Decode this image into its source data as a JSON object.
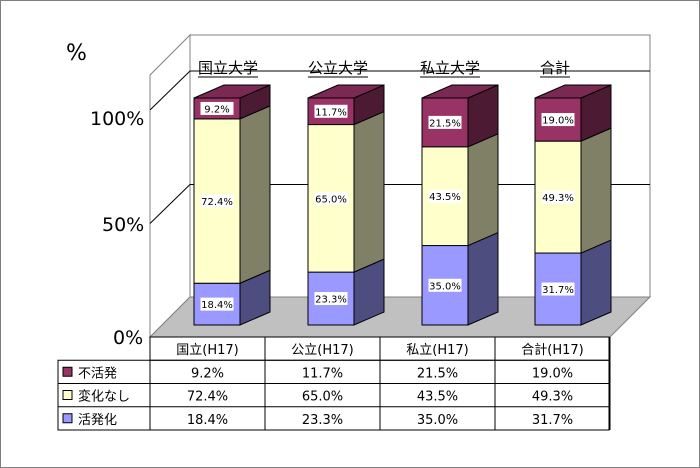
{
  "chart_data": {
    "type": "bar",
    "stacked": true,
    "three_d": true,
    "y_unit": "%",
    "y_ticks": [
      "0%",
      "50%",
      "100%"
    ],
    "ylim": [
      0,
      100
    ],
    "categories": [
      "国立大学",
      "公立大学",
      "私立大学",
      "合計"
    ],
    "table_headers": [
      "国立(H17)",
      "公立(H17)",
      "私立(H17)",
      "合計(H17)"
    ],
    "series": [
      {
        "name": "活発化",
        "color": "#9999ff",
        "values": [
          18.4,
          23.3,
          35.0,
          31.7
        ],
        "labels": [
          "18.4%",
          "23.3%",
          "35.0%",
          "31.7%"
        ]
      },
      {
        "name": "変化なし",
        "color": "#ffffcc",
        "values": [
          72.4,
          65.0,
          43.5,
          49.3
        ],
        "labels": [
          "72.4%",
          "65.0%",
          "43.5%",
          "49.3%"
        ]
      },
      {
        "name": "不活発",
        "color": "#993366",
        "values": [
          9.2,
          11.7,
          21.5,
          19.0
        ],
        "labels": [
          "9.2%",
          "11.7%",
          "21.5%",
          "19.0%"
        ]
      }
    ],
    "table_row_order": [
      "不活発",
      "変化なし",
      "活発化"
    ],
    "grid": true,
    "legend": "data-table"
  }
}
